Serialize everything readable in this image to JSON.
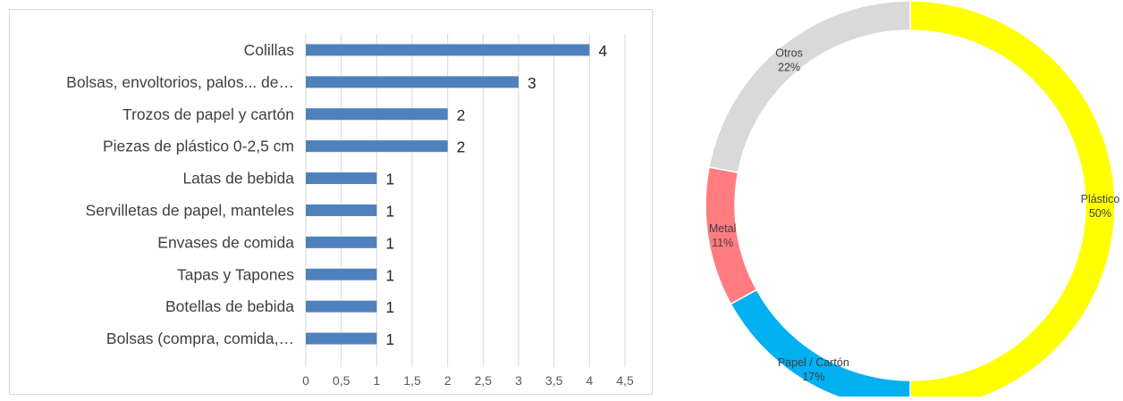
{
  "chart_data": [
    {
      "type": "bar",
      "orientation": "horizontal",
      "categories": [
        "Colillas",
        "Bolsas, envoltorios, palos... de…",
        "Trozos de papel y cartón",
        "Piezas de plástico 0-2,5 cm",
        "Latas de bebida",
        "Servilletas de papel, manteles",
        "Envases de comida",
        "Tapas y Tapones",
        "Botellas de bebida",
        "Bolsas (compra, comida,…"
      ],
      "values": [
        4,
        3,
        2,
        2,
        1,
        1,
        1,
        1,
        1,
        1
      ],
      "value_labels": [
        "4",
        "3",
        "2",
        "2",
        "1",
        "1",
        "1",
        "1",
        "1",
        "1"
      ],
      "xlim": [
        0,
        4.5
      ],
      "x_ticks": [
        "0",
        "0,5",
        "1",
        "1,5",
        "2",
        "2,5",
        "3",
        "3,5",
        "4",
        "4,5"
      ],
      "grid": true,
      "colors": {
        "bar": "#4f81bd",
        "grid": "#d9d9d9",
        "text": "#404040"
      }
    },
    {
      "type": "pie",
      "style": "donut",
      "slices": [
        {
          "label": "Plástico",
          "value": 50,
          "percent_label": "50%",
          "color": "#ffff00"
        },
        {
          "label": "Papel / Cartón",
          "value": 17,
          "percent_label": "17%",
          "color": "#00b0f0"
        },
        {
          "label": "Metal",
          "value": 11,
          "percent_label": "11%",
          "color": "#ff7c80"
        },
        {
          "label": "Otros",
          "value": 22,
          "percent_label": "22%",
          "color": "#d9d9d9"
        }
      ],
      "start": "top",
      "direction": "clockwise",
      "colors": {
        "outline": "#ffffff",
        "text": "#404040"
      }
    }
  ]
}
